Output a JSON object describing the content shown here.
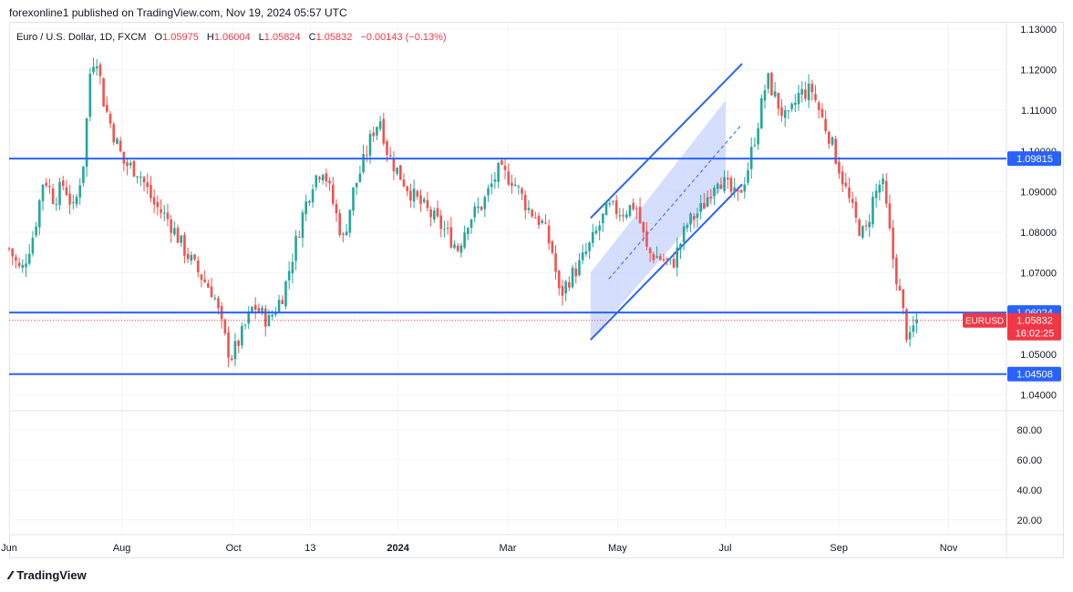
{
  "header": {
    "publisher_text": "forexonline1 published on TradingView.com, Nov 19, 2024 05:57 UTC"
  },
  "legend": {
    "symbol": "Euro / U.S. Dollar, 1D, FXCM",
    "o_label": "O",
    "o_value": "1.05975",
    "h_label": "H",
    "h_value": "1.06004",
    "l_label": "L",
    "l_value": "1.05824",
    "c_label": "C",
    "c_value": "1.05832",
    "change": "−0.00143 (−0.13%)"
  },
  "colors": {
    "up": "#26a69a",
    "down": "#ef5350",
    "line": "#2962ff",
    "channel_fill": "#c7d3fb",
    "current_price_bg": "#f23645"
  },
  "footer": {
    "brand": "TradingView",
    "logo_icon": "tradingview-logo-icon"
  },
  "chart_data": {
    "type": "candlestick",
    "price_axis": {
      "ticks": [
        "1.13000",
        "1.12000",
        "1.11000",
        "1.10000",
        "1.09000",
        "1.08000",
        "1.07000",
        "1.06000",
        "1.05000",
        "1.04000"
      ],
      "range": [
        1.0365,
        1.1318
      ]
    },
    "indicator_axis": {
      "ticks": [
        "80.00",
        "60.00",
        "40.00",
        "20.00"
      ],
      "range": [
        12,
        92
      ]
    },
    "time_axis": {
      "labels": [
        "Jun",
        "Aug",
        "Oct",
        "13",
        "2024",
        "Mar",
        "May",
        "Jul",
        "Sep",
        "Nov"
      ],
      "bold": [
        "2024"
      ]
    },
    "horizontal_levels": [
      {
        "value": 1.09815,
        "label": "1.09815"
      },
      {
        "value": 1.06024,
        "label": "1.06024"
      },
      {
        "value": 1.04508,
        "label": "1.04508"
      }
    ],
    "current_price": {
      "symbol": "EURUSD",
      "value": "1.05832",
      "countdown": "16:02:25",
      "price": 1.05832
    },
    "channel": {
      "upper_start": {
        "bar": 0.583,
        "price": 1.0835
      },
      "upper_end": {
        "bar": 0.735,
        "price": 1.1215
      },
      "lower_start": {
        "bar": 0.583,
        "price": 1.0535
      },
      "lower_end": {
        "bar": 0.735,
        "price": 1.0918
      }
    },
    "close_path": [
      [
        0.0,
        1.076
      ],
      [
        0.012,
        1.07
      ],
      [
        0.025,
        1.08
      ],
      [
        0.035,
        1.094
      ],
      [
        0.045,
        1.088
      ],
      [
        0.055,
        1.092
      ],
      [
        0.065,
        1.085
      ],
      [
        0.075,
        1.098
      ],
      [
        0.082,
        1.122
      ],
      [
        0.088,
        1.123
      ],
      [
        0.095,
        1.112
      ],
      [
        0.105,
        1.104
      ],
      [
        0.115,
        1.097
      ],
      [
        0.13,
        1.095
      ],
      [
        0.145,
        1.087
      ],
      [
        0.16,
        1.083
      ],
      [
        0.175,
        1.076
      ],
      [
        0.19,
        1.07
      ],
      [
        0.205,
        1.065
      ],
      [
        0.215,
        1.055
      ],
      [
        0.222,
        1.049
      ],
      [
        0.232,
        1.054
      ],
      [
        0.245,
        1.062
      ],
      [
        0.26,
        1.058
      ],
      [
        0.275,
        1.065
      ],
      [
        0.285,
        1.075
      ],
      [
        0.295,
        1.085
      ],
      [
        0.305,
        1.093
      ],
      [
        0.315,
        1.096
      ],
      [
        0.325,
        1.087
      ],
      [
        0.335,
        1.078
      ],
      [
        0.345,
        1.09
      ],
      [
        0.355,
        1.097
      ],
      [
        0.365,
        1.105
      ],
      [
        0.372,
        1.108
      ],
      [
        0.38,
        1.099
      ],
      [
        0.392,
        1.094
      ],
      [
        0.405,
        1.089
      ],
      [
        0.42,
        1.085
      ],
      [
        0.435,
        1.081
      ],
      [
        0.45,
        1.076
      ],
      [
        0.46,
        1.083
      ],
      [
        0.475,
        1.087
      ],
      [
        0.49,
        1.095
      ],
      [
        0.505,
        1.093
      ],
      [
        0.52,
        1.086
      ],
      [
        0.535,
        1.082
      ],
      [
        0.545,
        1.075
      ],
      [
        0.552,
        1.064
      ],
      [
        0.56,
        1.068
      ],
      [
        0.572,
        1.072
      ],
      [
        0.585,
        1.078
      ],
      [
        0.6,
        1.086
      ],
      [
        0.615,
        1.085
      ],
      [
        0.628,
        1.087
      ],
      [
        0.64,
        1.075
      ],
      [
        0.65,
        1.074
      ],
      [
        0.665,
        1.072
      ],
      [
        0.68,
        1.082
      ],
      [
        0.695,
        1.086
      ],
      [
        0.71,
        1.094
      ],
      [
        0.72,
        1.091
      ],
      [
        0.73,
        1.088
      ],
      [
        0.74,
        1.095
      ],
      [
        0.75,
        1.106
      ],
      [
        0.76,
        1.118
      ],
      [
        0.77,
        1.112
      ],
      [
        0.78,
        1.107
      ],
      [
        0.792,
        1.114
      ],
      [
        0.805,
        1.115
      ],
      [
        0.815,
        1.108
      ],
      [
        0.822,
        1.104
      ],
      [
        0.832,
        1.096
      ],
      [
        0.842,
        1.088
      ],
      [
        0.85,
        1.082
      ],
      [
        0.858,
        1.079
      ],
      [
        0.866,
        1.088
      ],
      [
        0.875,
        1.093
      ],
      [
        0.88,
        1.085
      ],
      [
        0.886,
        1.074
      ],
      [
        0.892,
        1.066
      ],
      [
        0.898,
        1.058
      ],
      [
        0.902,
        1.052
      ],
      [
        0.906,
        1.056
      ],
      [
        0.91,
        1.0583
      ]
    ]
  }
}
